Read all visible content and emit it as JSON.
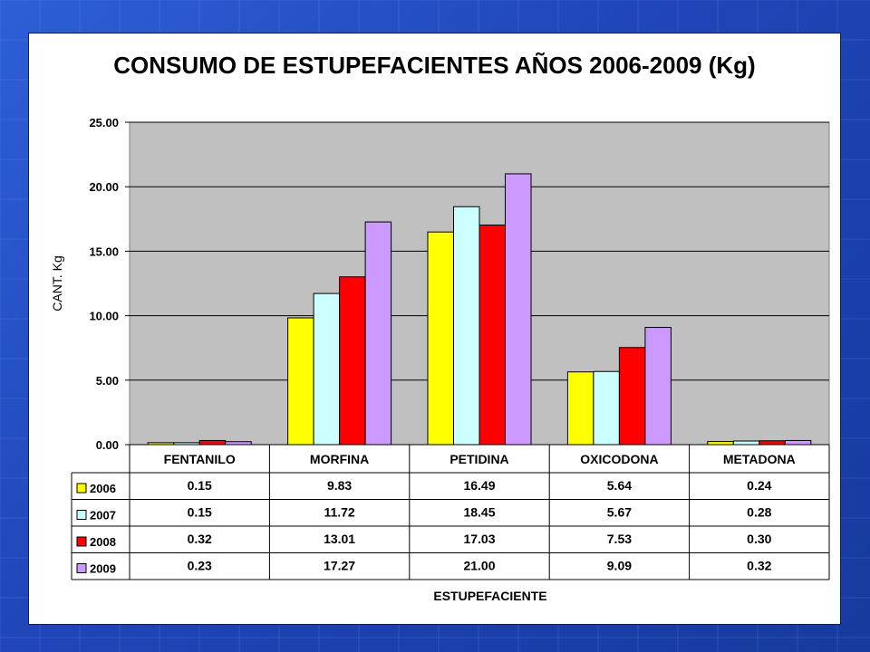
{
  "chart_data": {
    "type": "bar",
    "title": "CONSUMO DE ESTUPEFACIENTES AÑOS 2006-2009 (Kg)",
    "xlabel": "ESTUPEFACIENTE",
    "ylabel": "CANT. Kg",
    "ylim": [
      0,
      25
    ],
    "yticks": [
      "0.00",
      "5.00",
      "10.00",
      "15.00",
      "20.00",
      "25.00"
    ],
    "grid": true,
    "legend": "data-table",
    "categories": [
      "FENTANILO",
      "MORFINA",
      "PETIDINA",
      "OXICODONA",
      "METADONA"
    ],
    "series": [
      {
        "name": "2006",
        "color": "#ffff00",
        "values": [
          0.15,
          9.83,
          16.49,
          5.64,
          0.24
        ],
        "labels": [
          "0.15",
          "9.83",
          "16.49",
          "5.64",
          "0.24"
        ]
      },
      {
        "name": "2007",
        "color": "#ccffff",
        "values": [
          0.15,
          11.72,
          18.45,
          5.67,
          0.28
        ],
        "labels": [
          "0.15",
          "11.72",
          "18.45",
          "5.67",
          "0.28"
        ]
      },
      {
        "name": "2008",
        "color": "#ff0000",
        "values": [
          0.32,
          13.01,
          17.03,
          7.53,
          0.3
        ],
        "labels": [
          "0.32",
          "13.01",
          "17.03",
          "7.53",
          "0.30"
        ]
      },
      {
        "name": "2009",
        "color": "#cc99ff",
        "values": [
          0.23,
          17.27,
          21.0,
          9.09,
          0.32
        ],
        "labels": [
          "0.23",
          "17.27",
          "21.00",
          "9.09",
          "0.32"
        ]
      }
    ],
    "plot_background": "#c0c0c0"
  }
}
